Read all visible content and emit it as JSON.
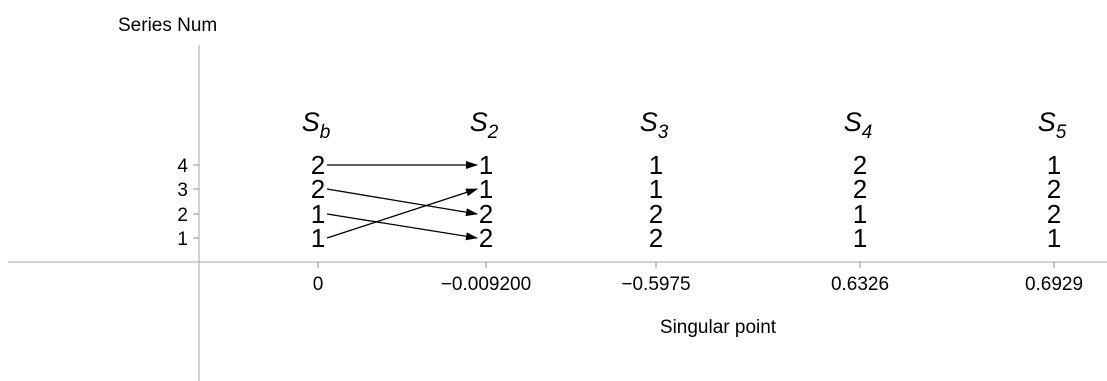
{
  "chart_data": {
    "type": "diagram",
    "y_axis_title": "Series Num",
    "x_axis_title": "Singular point",
    "y_ticks": [
      "1",
      "2",
      "3",
      "4"
    ],
    "columns": [
      {
        "head": "S",
        "sub": "b",
        "x_label": "0",
        "values": [
          "1",
          "1",
          "2",
          "2"
        ]
      },
      {
        "head": "S",
        "sub": "2",
        "x_label": "−0.009200",
        "values": [
          "2",
          "2",
          "1",
          "1"
        ]
      },
      {
        "head": "S",
        "sub": "3",
        "x_label": "−0.5975",
        "values": [
          "2",
          "2",
          "1",
          "1"
        ]
      },
      {
        "head": "S",
        "sub": "4",
        "x_label": "0.6326",
        "values": [
          "1",
          "1",
          "2",
          "2"
        ]
      },
      {
        "head": "S",
        "sub": "5",
        "x_label": "0.6929",
        "values": [
          "1",
          "2",
          "2",
          "1"
        ]
      }
    ],
    "arrows": [
      {
        "from_column": 0,
        "from_series": 4,
        "to_column": 1,
        "to_series": 4
      },
      {
        "from_column": 0,
        "from_series": 3,
        "to_column": 1,
        "to_series": 2
      },
      {
        "from_column": 0,
        "from_series": 2,
        "to_column": 1,
        "to_series": 1
      },
      {
        "from_column": 0,
        "from_series": 1,
        "to_column": 1,
        "to_series": 3
      }
    ]
  }
}
